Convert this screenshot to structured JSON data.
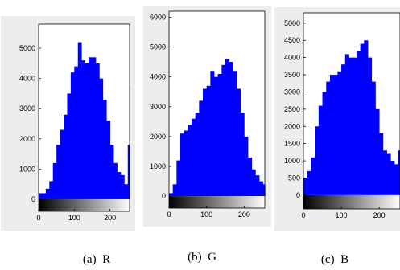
{
  "chart_data": [
    {
      "type": "bar",
      "caption": "(a)  R",
      "series_color": "#0000ff",
      "xlim": [
        0,
        255
      ],
      "ylim": [
        -400,
        5800
      ],
      "x_ticks": [
        "0",
        "100",
        "200"
      ],
      "y_ticks": [
        "0",
        "1000",
        "2000",
        "3000",
        "4000",
        "5000"
      ],
      "x": [
        0,
        10,
        20,
        30,
        40,
        50,
        60,
        70,
        80,
        90,
        100,
        110,
        120,
        130,
        140,
        150,
        160,
        170,
        180,
        190,
        200,
        210,
        220,
        230,
        240,
        250,
        255
      ],
      "values": [
        200,
        200,
        350,
        600,
        1200,
        1800,
        2300,
        2800,
        3500,
        4200,
        4400,
        5200,
        4600,
        4500,
        4700,
        4700,
        4500,
        4000,
        3300,
        2600,
        1800,
        1200,
        900,
        800,
        500,
        1800,
        3800
      ]
    },
    {
      "type": "bar",
      "caption": "(b)  G",
      "series_color": "#0000ff",
      "xlim": [
        0,
        255
      ],
      "ylim": [
        -400,
        6200
      ],
      "x_ticks": [
        "0",
        "100",
        "200"
      ],
      "y_ticks": [
        "0",
        "1000",
        "2000",
        "3000",
        "4000",
        "5000",
        "6000"
      ],
      "x": [
        0,
        10,
        20,
        30,
        40,
        50,
        60,
        70,
        80,
        90,
        100,
        110,
        120,
        130,
        140,
        150,
        160,
        170,
        180,
        190,
        200,
        210,
        220,
        230,
        240,
        250,
        255
      ],
      "values": [
        100,
        400,
        1200,
        2100,
        2200,
        2400,
        2600,
        2800,
        3200,
        3600,
        3700,
        4200,
        4000,
        4100,
        4400,
        4600,
        4500,
        4200,
        3600,
        2800,
        2000,
        1300,
        900,
        700,
        500,
        400,
        300
      ]
    },
    {
      "type": "bar",
      "caption": "(c)  B",
      "series_color": "#0000ff",
      "xlim": [
        0,
        255
      ],
      "ylim": [
        -400,
        5300
      ],
      "x_ticks": [
        "0",
        "100",
        "200"
      ],
      "y_ticks": [
        "0",
        "500",
        "1000",
        "1500",
        "2000",
        "2500",
        "3000",
        "3500",
        "4000",
        "4500",
        "5000"
      ],
      "x": [
        0,
        10,
        20,
        30,
        40,
        50,
        60,
        70,
        80,
        90,
        100,
        110,
        120,
        130,
        140,
        150,
        160,
        170,
        180,
        190,
        200,
        210,
        220,
        230,
        240,
        250,
        255
      ],
      "values": [
        500,
        700,
        1100,
        2000,
        2600,
        3000,
        3300,
        3500,
        3500,
        3600,
        3800,
        4100,
        4000,
        4000,
        4200,
        4400,
        4500,
        4000,
        3300,
        2500,
        1800,
        1300,
        1200,
        1000,
        900,
        1300,
        1700
      ]
    }
  ]
}
